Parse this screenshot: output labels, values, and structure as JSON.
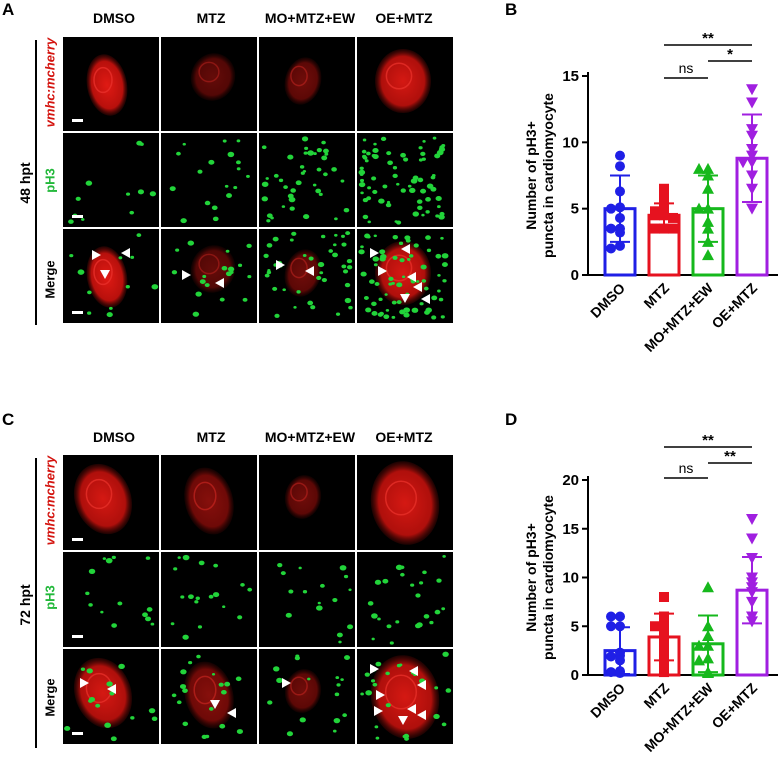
{
  "panels": {
    "A": "A",
    "B": "B",
    "C": "C",
    "D": "D"
  },
  "columns": [
    "DMSO",
    "MTZ",
    "MO+MTZ+EW",
    "OE+MTZ"
  ],
  "rows": [
    "vmhc:mcherry",
    "pH3",
    "Merge"
  ],
  "top_time": "48 hpt",
  "bottom_time": "72 hpt",
  "colors": {
    "DMSO": "#1f1fe6",
    "MTZ": "#e6121f",
    "MO+MTZ+EW": "#16b81c",
    "OE+MTZ": "#a01fe0",
    "red_channel": "#d4140f",
    "green_channel": "#22d43a"
  },
  "chart_data": [
    {
      "type": "bar",
      "panel": "B",
      "categories": [
        "DMSO",
        "MTZ",
        "MO+MTZ+EW",
        "OE+MTZ"
      ],
      "values": [
        5.0,
        4.5,
        5.0,
        8.8
      ],
      "sd": [
        2.5,
        0.9,
        2.5,
        3.3
      ],
      "points": [
        [
          9,
          8.2,
          6.3,
          5.1,
          5.0,
          4.3,
          3.5,
          3.5,
          3.2,
          2.2,
          2.0
        ],
        [
          6.5,
          6.0,
          5.5,
          5.0,
          4.8,
          4.5,
          4.5,
          4.3,
          3.5,
          3.5,
          3.5
        ],
        [
          8,
          8,
          7.5,
          6.5,
          5.0,
          5.0,
          4.0,
          3.5,
          2.5,
          1.5
        ],
        [
          14,
          13,
          11,
          10.5,
          9.5,
          9.0,
          8.5,
          8.5,
          7.5,
          6.5,
          5.0
        ]
      ],
      "ylabel": "Number of pH3+ puncta in cardiomyocyte",
      "ylim": [
        0,
        15
      ],
      "yticks": [
        0,
        5,
        10,
        15
      ],
      "significance": [
        {
          "from": "MTZ",
          "to": "OE+MTZ",
          "label": "**"
        },
        {
          "from": "MTZ",
          "to": "MO+MTZ+EW",
          "label": "ns"
        },
        {
          "from": "MO+MTZ+EW",
          "to": "OE+MTZ",
          "label": "*"
        }
      ]
    },
    {
      "type": "bar",
      "panel": "D",
      "categories": [
        "DMSO",
        "MTZ",
        "MO+MTZ+EW",
        "OE+MTZ"
      ],
      "values": [
        2.5,
        3.9,
        3.2,
        8.7
      ],
      "sd": [
        2.4,
        2.4,
        2.9,
        3.4
      ],
      "points": [
        [
          6,
          6,
          5,
          5,
          2.3,
          2.0,
          1.9,
          1.5,
          0.4,
          0.3,
          0.2
        ],
        [
          8,
          6,
          5,
          5,
          4,
          3,
          2.5,
          1.5,
          1.0,
          0.3
        ],
        [
          9,
          5,
          4,
          3,
          3,
          1.7,
          1.5,
          0.3,
          0.2
        ],
        [
          16,
          14,
          12,
          10,
          9.5,
          9,
          8.5,
          7.5,
          6,
          5.5
        ]
      ],
      "ylabel": "Number of pH3+ puncta in cardiomyocyte",
      "ylim": [
        0,
        20
      ],
      "yticks": [
        0,
        5,
        10,
        15,
        20
      ],
      "significance": [
        {
          "from": "MTZ",
          "to": "OE+MTZ",
          "label": "**"
        },
        {
          "from": "MTZ",
          "to": "MO+MTZ+EW",
          "label": "ns"
        },
        {
          "from": "MO+MTZ+EW",
          "to": "OE+MTZ",
          "label": "**"
        }
      ]
    }
  ]
}
